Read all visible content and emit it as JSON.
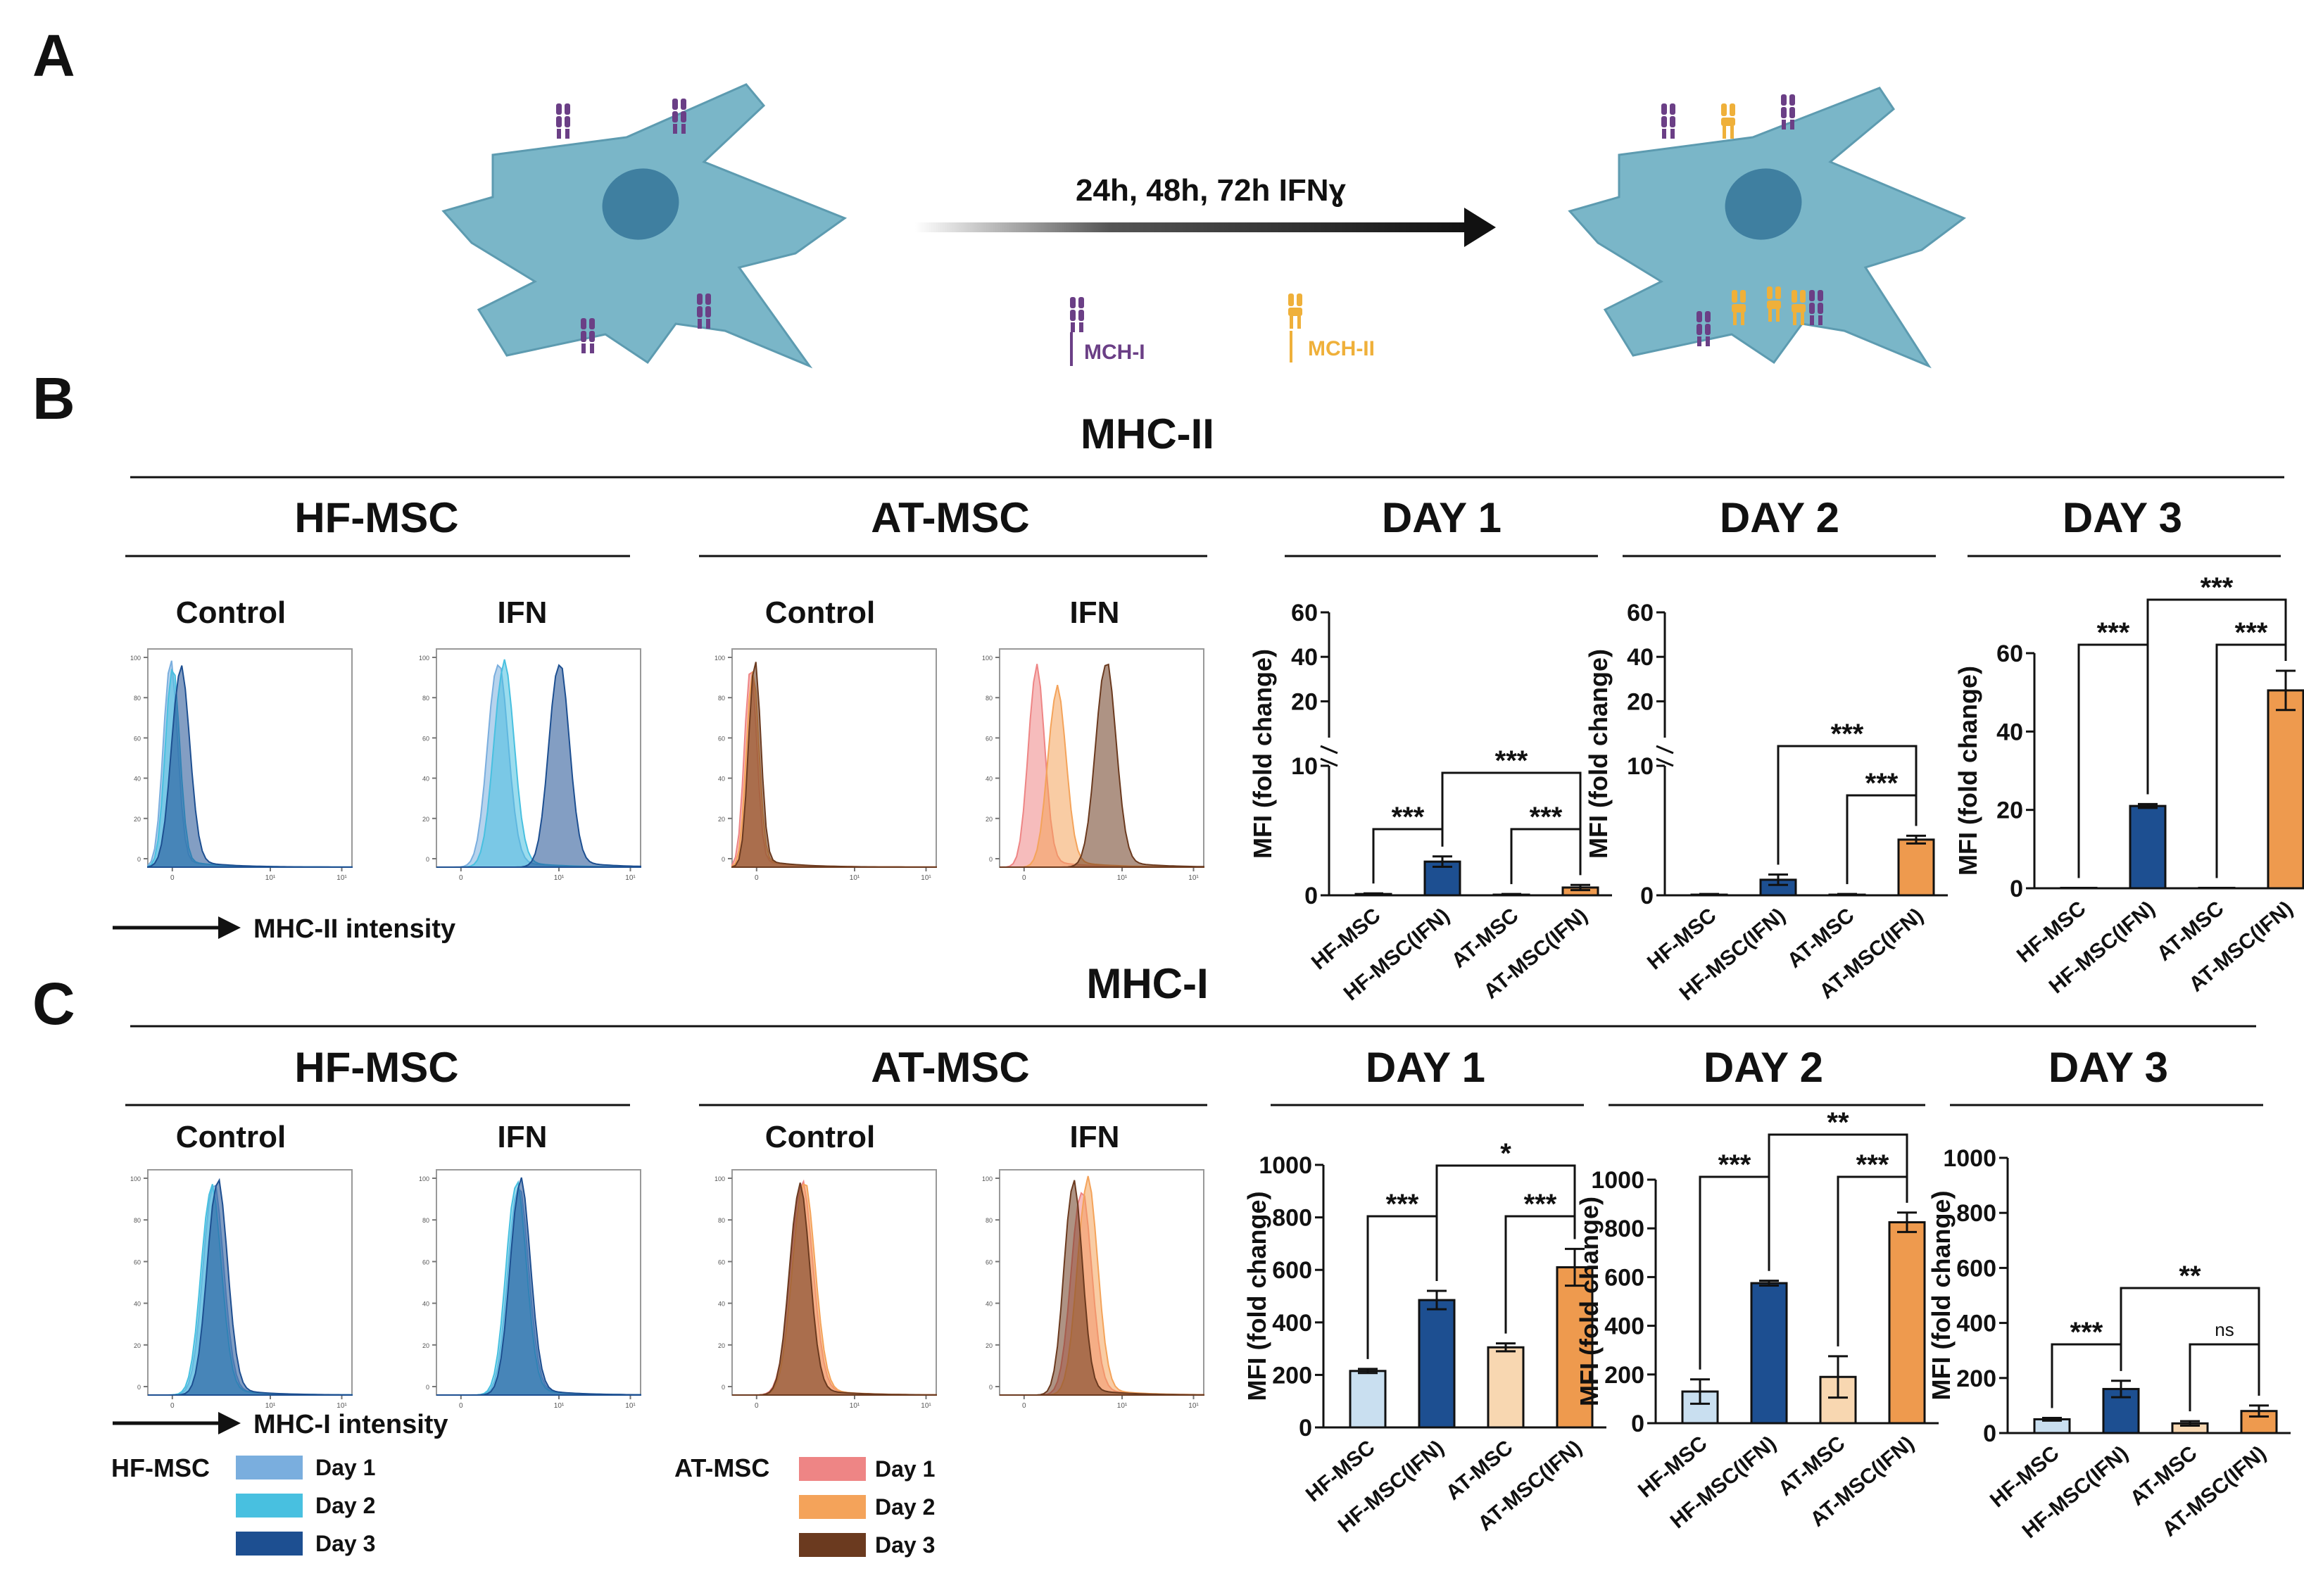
{
  "panel_labels": {
    "a": "A",
    "b": "B",
    "c": "C"
  },
  "panel_a": {
    "treatment_label": "24h, 48h, 72h IFNɣ",
    "legend": {
      "mhc1": "MCH-I",
      "mhc2": "MCH-II"
    }
  },
  "colors": {
    "cell": "#7ab6c8",
    "nucleus": "#3f7fa0",
    "mhc1": "#6b3f86",
    "mhc2": "#efb03a",
    "hf_light": "#c9dff0",
    "hf_dark": "#1d4f91",
    "at_light": "#f8d7b1",
    "at_dark": "#ee9a4e",
    "hf_day1": "#7aaede",
    "hf_day2": "#48c0e0",
    "hf_day3": "#1d4f91",
    "at_day1": "#ee8585",
    "at_day2": "#f4a35a",
    "at_day3": "#6b3a1f"
  },
  "panel_b": {
    "title": "MHC-II",
    "groups": {
      "hf": "HF-MSC",
      "at": "AT-MSC"
    },
    "conditions": {
      "control": "Control",
      "ifn": "IFN"
    },
    "axis_label": "MHC-II intensity",
    "day_titles": [
      "DAY 1",
      "DAY 2",
      "DAY 3"
    ]
  },
  "panel_c": {
    "title": "MHC-I",
    "groups": {
      "hf": "HF-MSC",
      "at": "AT-MSC"
    },
    "conditions": {
      "control": "Control",
      "ifn": "IFN"
    },
    "axis_label": "MHC-I intensity",
    "day_titles": [
      "DAY 1",
      "DAY 2",
      "DAY 3"
    ]
  },
  "flow_axis": {
    "y_ticks": [
      "100",
      "80",
      "60",
      "40",
      "20",
      "0"
    ],
    "x_ticks": [
      "0",
      "10¹",
      "10¹"
    ]
  },
  "legend": {
    "hf_title": "HF-MSC",
    "at_title": "AT-MSC",
    "days": [
      "Day 1",
      "Day 2",
      "Day 3"
    ]
  },
  "chart_data": [
    {
      "id": "mhc2-day1",
      "type": "bar",
      "title": "DAY 1",
      "ylabel": "MFI (fold change)",
      "categories": [
        "HF-MSC",
        "HF-MSC(IFN)",
        "AT-MSC",
        "AT-MSC(IFN)"
      ],
      "values": [
        0.1,
        2.6,
        0.05,
        0.6
      ],
      "errors": [
        0.05,
        0.4,
        0.05,
        0.2
      ],
      "y_break": true,
      "ylim_lower": [
        0,
        10
      ],
      "ylim_upper": [
        10,
        60
      ],
      "yticks": [
        0,
        10,
        20,
        40,
        60
      ],
      "significance": [
        {
          "from": 0,
          "to": 1,
          "label": "***"
        },
        {
          "from": 2,
          "to": 3,
          "label": "***"
        },
        {
          "from": 1,
          "to": 3,
          "label": "***"
        }
      ]
    },
    {
      "id": "mhc2-day2",
      "type": "bar",
      "title": "DAY 2",
      "ylabel": "MFI (fold change)",
      "categories": [
        "HF-MSC",
        "HF-MSC(IFN)",
        "AT-MSC",
        "AT-MSC(IFN)"
      ],
      "values": [
        0.05,
        1.2,
        0.05,
        4.3
      ],
      "errors": [
        0.05,
        0.4,
        0.05,
        0.3
      ],
      "y_break": true,
      "ylim_lower": [
        0,
        10
      ],
      "ylim_upper": [
        10,
        60
      ],
      "yticks": [
        0,
        10,
        20,
        40,
        60
      ],
      "significance": [
        {
          "from": 2,
          "to": 3,
          "label": "***"
        },
        {
          "from": 1,
          "to": 3,
          "label": "***"
        }
      ]
    },
    {
      "id": "mhc2-day3",
      "type": "bar",
      "title": "DAY 3",
      "ylabel": "MFI (fold change)",
      "categories": [
        "HF-MSC",
        "HF-MSC(IFN)",
        "AT-MSC",
        "AT-MSC(IFN)"
      ],
      "values": [
        0.1,
        21,
        0.1,
        50.5
      ],
      "errors": [
        0,
        0.5,
        0,
        5
      ],
      "ylim": [
        0,
        60
      ],
      "yticks": [
        0,
        20,
        40,
        60
      ],
      "significance": [
        {
          "from": 0,
          "to": 1,
          "label": "***"
        },
        {
          "from": 2,
          "to": 3,
          "label": "***"
        },
        {
          "from": 1,
          "to": 3,
          "label": "***"
        }
      ]
    },
    {
      "id": "mhc1-day1",
      "type": "bar",
      "title": "DAY 1",
      "ylabel": "MFI (fold change)",
      "categories": [
        "HF-MSC",
        "HF-MSC(IFN)",
        "AT-MSC",
        "AT-MSC(IFN)"
      ],
      "values": [
        215,
        485,
        305,
        610
      ],
      "errors": [
        8,
        35,
        15,
        70
      ],
      "ylim": [
        0,
        1000
      ],
      "yticks": [
        0,
        200,
        400,
        600,
        800,
        1000
      ],
      "significance": [
        {
          "from": 0,
          "to": 1,
          "label": "***"
        },
        {
          "from": 2,
          "to": 3,
          "label": "***"
        },
        {
          "from": 1,
          "to": 3,
          "label": "*"
        }
      ]
    },
    {
      "id": "mhc1-day2",
      "type": "bar",
      "title": "DAY 2",
      "ylabel": "MFI (fold change)",
      "categories": [
        "HF-MSC",
        "HF-MSC(IFN)",
        "AT-MSC",
        "AT-MSC(IFN)"
      ],
      "values": [
        130,
        575,
        190,
        825
      ],
      "errors": [
        50,
        10,
        85,
        40
      ],
      "ylim": [
        0,
        1000
      ],
      "yticks": [
        0,
        200,
        400,
        600,
        800,
        1000
      ],
      "significance": [
        {
          "from": 0,
          "to": 1,
          "label": "***"
        },
        {
          "from": 2,
          "to": 3,
          "label": "***"
        },
        {
          "from": 1,
          "to": 3,
          "label": "**"
        }
      ]
    },
    {
      "id": "mhc1-day3",
      "type": "bar",
      "title": "DAY 3",
      "ylabel": "MFI (fold change)",
      "categories": [
        "HF-MSC",
        "HF-MSC(IFN)",
        "AT-MSC",
        "AT-MSC(IFN)"
      ],
      "values": [
        50,
        160,
        35,
        80
      ],
      "errors": [
        5,
        30,
        8,
        20
      ],
      "ylim": [
        0,
        1000
      ],
      "yticks": [
        0,
        200,
        400,
        600,
        800,
        1000
      ],
      "significance": [
        {
          "from": 0,
          "to": 1,
          "label": "***"
        },
        {
          "from": 2,
          "to": 3,
          "label": "ns"
        },
        {
          "from": 1,
          "to": 3,
          "label": "**"
        }
      ]
    }
  ]
}
